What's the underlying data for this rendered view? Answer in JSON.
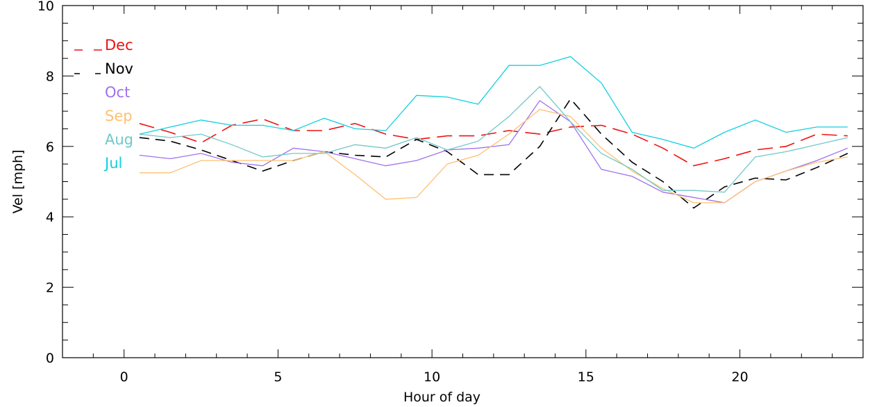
{
  "chart_data": {
    "type": "line",
    "title": "",
    "xlabel": "Hour of day",
    "ylabel": "Vel [mph]",
    "xlim": [
      -2,
      24
    ],
    "ylim": [
      0,
      10
    ],
    "x_ticks": [
      0,
      5,
      10,
      15,
      20
    ],
    "y_ticks": [
      0,
      2,
      4,
      6,
      8,
      10
    ],
    "x": [
      0.5,
      1.5,
      2.5,
      3.5,
      4.5,
      5.5,
      6.5,
      7.5,
      8.5,
      9.5,
      10.5,
      11.5,
      12.5,
      13.5,
      14.5,
      15.5,
      16.5,
      17.5,
      18.5,
      19.5,
      20.5,
      21.5,
      22.5,
      23.5
    ],
    "legend_position": "top-left",
    "grid": false,
    "series": [
      {
        "name": "Dec",
        "color": "#ee1111",
        "dash": "long",
        "values": [
          6.65,
          6.4,
          6.1,
          6.6,
          6.78,
          6.45,
          6.45,
          6.65,
          6.35,
          6.2,
          6.3,
          6.3,
          6.45,
          6.35,
          6.55,
          6.6,
          6.35,
          5.95,
          5.45,
          5.65,
          5.9,
          6.0,
          6.35,
          6.3
        ]
      },
      {
        "name": "Nov",
        "color": "#000000",
        "dash": "medium",
        "values": [
          6.25,
          6.15,
          5.9,
          5.6,
          5.3,
          5.6,
          5.85,
          5.75,
          5.7,
          6.2,
          5.85,
          5.2,
          5.2,
          6.0,
          7.35,
          6.35,
          5.55,
          5.0,
          4.25,
          4.85,
          5.1,
          5.05,
          5.4,
          5.8
        ]
      },
      {
        "name": "Oct",
        "color": "#a070ee",
        "dash": "solid",
        "values": [
          5.75,
          5.65,
          5.8,
          5.55,
          5.45,
          5.95,
          5.85,
          5.65,
          5.45,
          5.6,
          5.9,
          5.95,
          6.05,
          7.3,
          6.7,
          5.35,
          5.15,
          4.7,
          4.55,
          4.4,
          5.0,
          5.3,
          5.6,
          5.95
        ]
      },
      {
        "name": "Sep",
        "color": "#ffc070",
        "dash": "solid",
        "values": [
          5.25,
          5.25,
          5.6,
          5.6,
          5.6,
          5.6,
          5.85,
          5.2,
          4.5,
          4.55,
          5.5,
          5.75,
          6.35,
          7.05,
          6.85,
          5.95,
          5.3,
          4.8,
          4.4,
          4.4,
          5.0,
          5.3,
          5.55,
          5.7
        ]
      },
      {
        "name": "Aug",
        "color": "#70c8c8",
        "dash": "solid",
        "values": [
          6.35,
          6.25,
          6.35,
          6.05,
          5.7,
          5.8,
          5.8,
          6.05,
          5.95,
          6.25,
          5.9,
          6.15,
          6.85,
          7.7,
          6.7,
          5.8,
          5.35,
          4.75,
          4.75,
          4.7,
          5.7,
          5.85,
          6.05,
          6.25
        ]
      },
      {
        "name": "Jul",
        "color": "#10d0e0",
        "dash": "solid",
        "values": [
          6.35,
          6.55,
          6.75,
          6.6,
          6.6,
          6.45,
          6.8,
          6.5,
          6.45,
          7.45,
          7.4,
          7.2,
          8.3,
          8.3,
          8.55,
          7.8,
          6.4,
          6.2,
          5.95,
          6.4,
          6.75,
          6.4,
          6.55,
          6.55
        ]
      }
    ]
  }
}
